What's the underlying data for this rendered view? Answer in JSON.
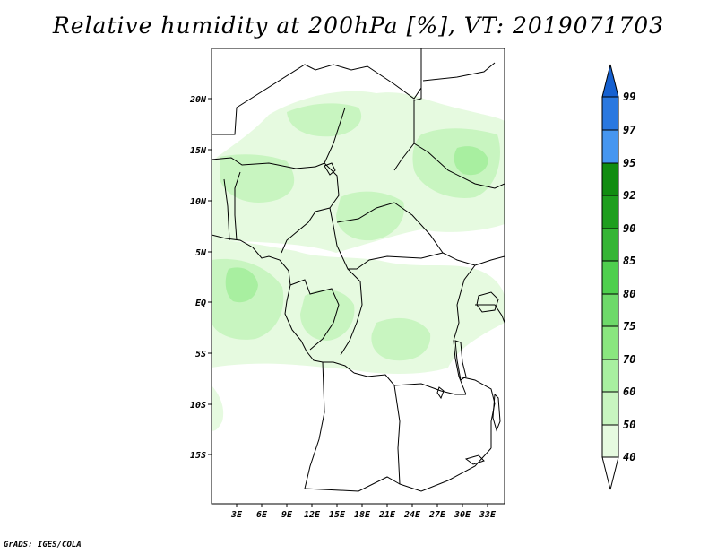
{
  "title": "Relative humidity at 200hPa [%], VT: 2019071703",
  "credit": "GrADS: IGES/COLA",
  "map": {
    "lon_range": [
      0,
      35
    ],
    "lat_range": [
      -20,
      25
    ],
    "x_ticks": [
      "3E",
      "6E",
      "9E",
      "12E",
      "15E",
      "18E",
      "21E",
      "24E",
      "27E",
      "30E",
      "33E"
    ],
    "y_ticks": [
      "20N",
      "15N",
      "10N",
      "5N",
      "EQ",
      "5S",
      "10S",
      "15S"
    ],
    "field": "relative humidity",
    "level": "200hPa",
    "valid_time": "2019071703"
  },
  "colorbar": {
    "labels": [
      "40",
      "50",
      "60",
      "70",
      "75",
      "80",
      "85",
      "90",
      "92",
      "95",
      "97",
      "99"
    ],
    "colors": [
      "#ffffff",
      "#e6fae0",
      "#c8f5c0",
      "#a8efa0",
      "#8ae67f",
      "#6ed96a",
      "#4fcf4e",
      "#35b535",
      "#1e9e1e",
      "#118c11",
      "#4696f0",
      "#2a78e0",
      "#1560d0"
    ]
  }
}
